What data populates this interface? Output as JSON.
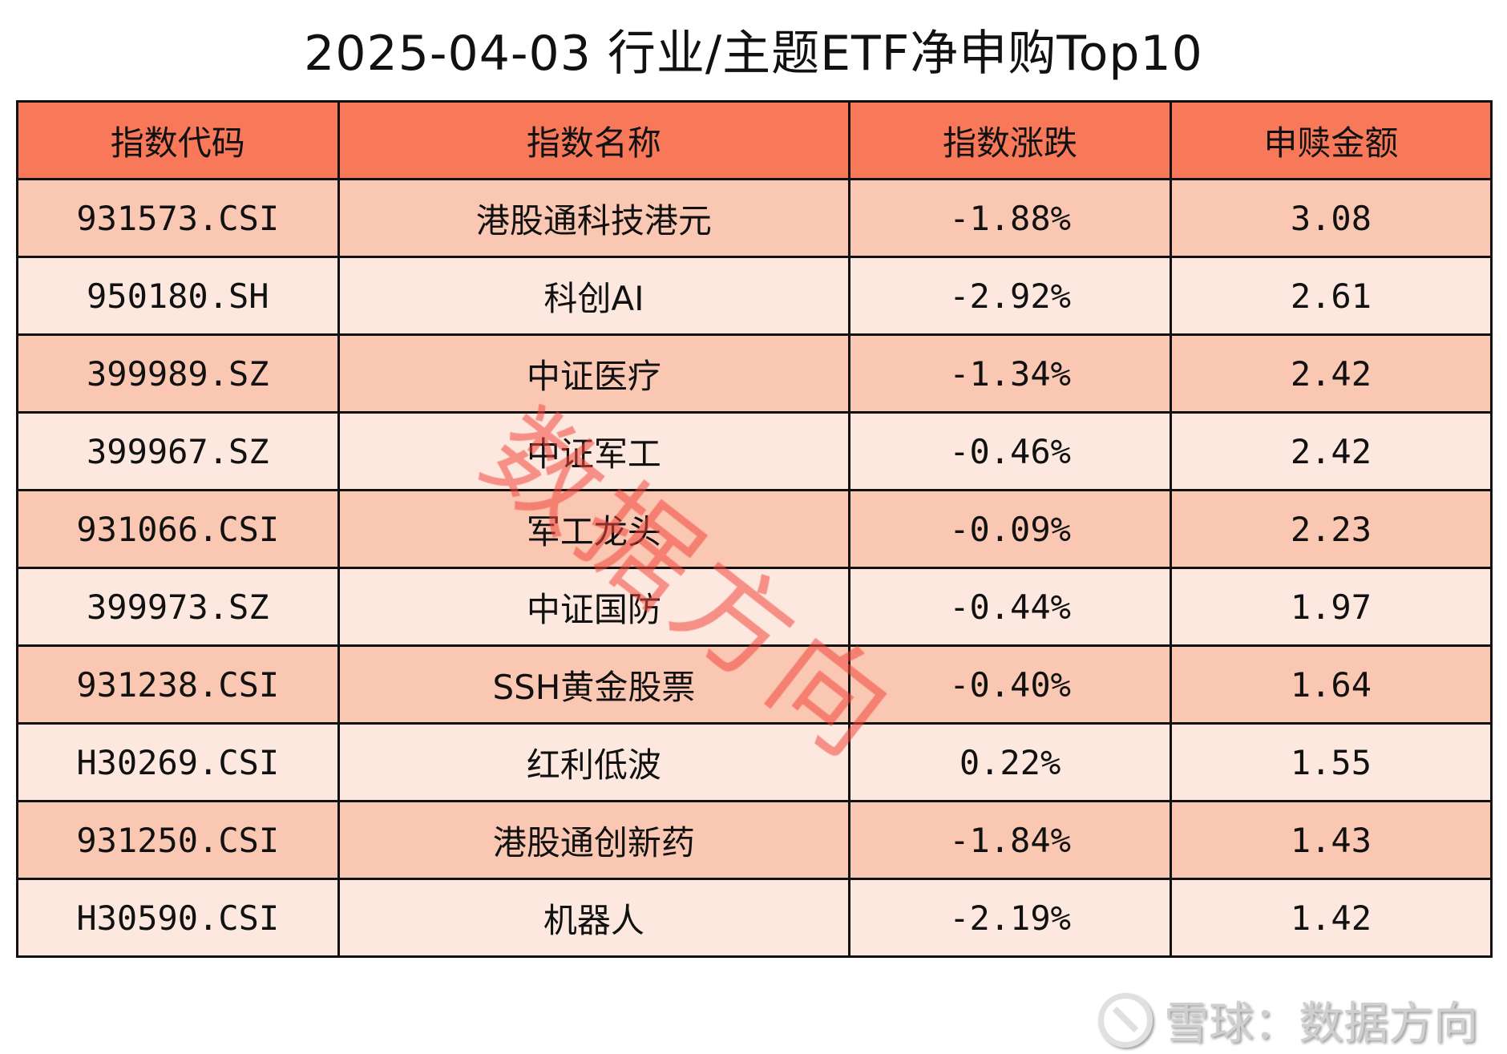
{
  "title": "2025-04-03 行业/主题ETF净申购Top10",
  "table": {
    "headers": [
      "指数代码",
      "指数名称",
      "指数涨跌",
      "申赎金额"
    ],
    "rows": [
      [
        "931573.CSI",
        "港股通科技港元",
        "-1.88%",
        "3.08"
      ],
      [
        "950180.SH",
        "科创AI",
        "-2.92%",
        "2.61"
      ],
      [
        "399989.SZ",
        "中证医疗",
        "-1.34%",
        "2.42"
      ],
      [
        "399967.SZ",
        "中证军工",
        "-0.46%",
        "2.42"
      ],
      [
        "931066.CSI",
        "军工龙头",
        "-0.09%",
        "2.23"
      ],
      [
        "399973.SZ",
        "中证国防",
        "-0.44%",
        "1.97"
      ],
      [
        "931238.CSI",
        "SSH黄金股票",
        "-0.40%",
        "1.64"
      ],
      [
        "H30269.CSI",
        "红利低波",
        "0.22%",
        "1.55"
      ],
      [
        "931250.CSI",
        "港股通创新药",
        "-1.84%",
        "1.43"
      ],
      [
        "H30590.CSI",
        "机器人",
        "-2.19%",
        "1.42"
      ]
    ]
  },
  "watermark": "数据方向",
  "brand": {
    "text": "雪球：数据方向",
    "icon": "snowball-logo-icon"
  },
  "colors": {
    "header": "#F7795A",
    "row_odd": "#FAC7B2",
    "row_even": "#FDE8DF",
    "watermark": "#F0463C"
  }
}
